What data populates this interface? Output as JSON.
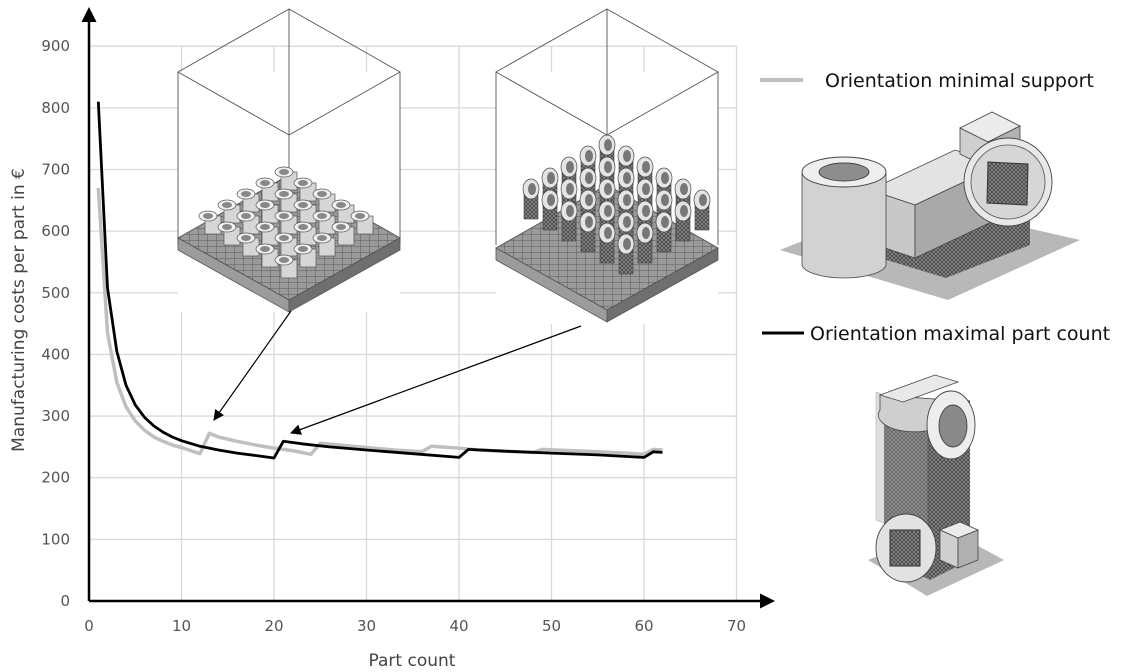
{
  "chart_data": {
    "type": "line",
    "title": "",
    "xlabel": "Part count",
    "ylabel": "Manufacturing costs per part in €",
    "xlim": [
      0,
      70
    ],
    "ylim": [
      0,
      900
    ],
    "xticks": [
      0,
      10,
      20,
      30,
      40,
      50,
      60,
      70
    ],
    "yticks": [
      0,
      100,
      200,
      300,
      400,
      500,
      600,
      700,
      800,
      900
    ],
    "grid": true,
    "legend_position": "right",
    "series": [
      {
        "name": "Orientation minimal support",
        "color": "#bfbfbf",
        "x": [
          1,
          2,
          3,
          4,
          5,
          6,
          7,
          8,
          9,
          10,
          11,
          12,
          13,
          14,
          16,
          18,
          20,
          22,
          24,
          25,
          27,
          30,
          33,
          36,
          37,
          40,
          42,
          45,
          48,
          49,
          52,
          55,
          58,
          60,
          61,
          62
        ],
        "values": [
          670,
          435,
          355,
          315,
          292,
          277,
          266,
          259,
          253,
          249,
          244,
          239,
          272,
          266,
          259,
          253,
          248,
          244,
          238,
          256,
          253,
          249,
          245,
          242,
          251,
          248,
          245,
          243,
          241,
          246,
          244,
          242,
          240,
          238,
          246,
          245
        ]
      },
      {
        "name": "Orientation maximal part count",
        "color": "#000000",
        "x": [
          1,
          2,
          3,
          4,
          5,
          6,
          7,
          8,
          9,
          10,
          12,
          14,
          16,
          18,
          20,
          21,
          23,
          26,
          30,
          35,
          40,
          41,
          45,
          50,
          55,
          60,
          61,
          62
        ],
        "values": [
          810,
          508,
          405,
          350,
          318,
          298,
          284,
          274,
          266,
          260,
          251,
          245,
          240,
          236,
          232,
          259,
          255,
          250,
          245,
          239,
          233,
          246,
          243,
          240,
          237,
          233,
          242,
          241
        ]
      }
    ],
    "annotations": {
      "insets": [
        "build-chamber-minimal-support",
        "build-chamber-maximal-part-count",
        "part-orientation-minimal-support",
        "part-orientation-maximal-part-count"
      ]
    }
  }
}
